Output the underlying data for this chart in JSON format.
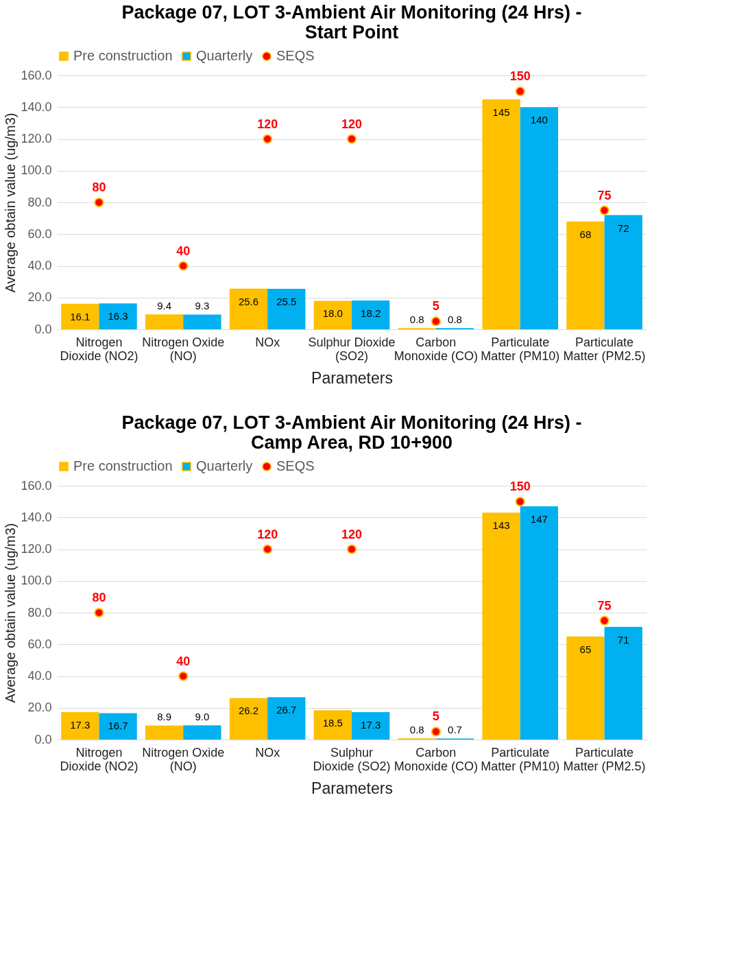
{
  "chart_data": [
    {
      "type": "bar",
      "title": "Package 07, LOT 3-Ambient Air Monitoring (24 Hrs) -\nStart Point",
      "xlabel": "Parameters",
      "ylabel": "Average obtain value (ug/m3)",
      "categories": [
        "Nitrogen\nDioxide (NO2)",
        "Nitrogen Oxide\n(NO)",
        "NOx",
        "Sulphur Dioxide\n(SO2)",
        "Carbon\nMonoxide (CO)",
        "Particulate\nMatter (PM10)",
        "Particulate\nMatter (PM2.5)"
      ],
      "ylim": [
        0,
        160
      ],
      "yticks": [
        {
          "value": 0,
          "label": "0.0"
        },
        {
          "value": 20,
          "label": "20.0"
        },
        {
          "value": 40,
          "label": "40.0"
        },
        {
          "value": 60,
          "label": "60.0"
        },
        {
          "value": 80,
          "label": "80.0"
        },
        {
          "value": 100,
          "label": "100.0"
        },
        {
          "value": 120,
          "label": "120.0"
        },
        {
          "value": 140,
          "label": "140.0"
        },
        {
          "value": 160,
          "label": "160.0"
        }
      ],
      "grid": "y",
      "legend": "top",
      "marker": "circle",
      "series": [
        {
          "name": "Pre construction",
          "color": "#ffc000",
          "values": [
            16.1,
            9.4,
            25.6,
            18.0,
            0.8,
            145,
            68
          ],
          "value_labels": [
            "16.1",
            "9.4",
            "25.6",
            "18.0",
            "0.8",
            "145",
            "68"
          ]
        },
        {
          "name": "Quarterly",
          "color": "#00b0f0",
          "values": [
            16.3,
            9.3,
            25.5,
            18.2,
            0.8,
            140,
            72
          ],
          "value_labels": [
            "16.3",
            "9.3",
            "25.5",
            "18.2",
            "0.8",
            "140",
            "72"
          ]
        },
        {
          "name": "SEQS",
          "type": "scatter",
          "color": "#ff0000",
          "values": [
            80,
            40,
            120,
            120,
            5,
            150,
            75
          ],
          "value_labels": [
            "80",
            "40",
            "120",
            "120",
            "5",
            "150",
            "75"
          ]
        }
      ]
    },
    {
      "type": "bar",
      "title": "Package 07, LOT 3-Ambient Air Monitoring (24 Hrs) -\nCamp Area, RD 10+900",
      "xlabel": "Parameters",
      "ylabel": "Average obtain value (ug/m3)",
      "categories": [
        "Nitrogen\nDioxide (NO2)",
        "Nitrogen Oxide\n(NO)",
        "NOx",
        "Sulphur\nDioxide (SO2)",
        "Carbon\nMonoxide (CO)",
        "Particulate\nMatter (PM10)",
        "Particulate\nMatter (PM2.5)"
      ],
      "ylim": [
        0,
        160
      ],
      "yticks": [
        {
          "value": 0,
          "label": "0.0"
        },
        {
          "value": 20,
          "label": "20.0"
        },
        {
          "value": 40,
          "label": "40.0"
        },
        {
          "value": 60,
          "label": "60.0"
        },
        {
          "value": 80,
          "label": "80.0"
        },
        {
          "value": 100,
          "label": "100.0"
        },
        {
          "value": 120,
          "label": "120.0"
        },
        {
          "value": 140,
          "label": "140.0"
        },
        {
          "value": 160,
          "label": "160.0"
        }
      ],
      "grid": "y",
      "legend": "top",
      "marker": "circle",
      "series": [
        {
          "name": "Pre construction",
          "color": "#ffc000",
          "values": [
            17.3,
            8.9,
            26.2,
            18.5,
            0.8,
            143,
            65
          ],
          "value_labels": [
            "17.3",
            "8.9",
            "26.2",
            "18.5",
            "0.8",
            "143",
            "65"
          ]
        },
        {
          "name": "Quarterly",
          "color": "#00b0f0",
          "values": [
            16.7,
            9.0,
            26.7,
            17.3,
            0.7,
            147,
            71
          ],
          "value_labels": [
            "16.7",
            "9.0",
            "26.7",
            "17.3",
            "0.7",
            "147",
            "71"
          ]
        },
        {
          "name": "SEQS",
          "type": "scatter",
          "color": "#ff0000",
          "values": [
            80,
            40,
            120,
            120,
            5,
            150,
            75
          ],
          "value_labels": [
            "80",
            "40",
            "120",
            "120",
            "5",
            "150",
            "75"
          ]
        }
      ]
    }
  ]
}
